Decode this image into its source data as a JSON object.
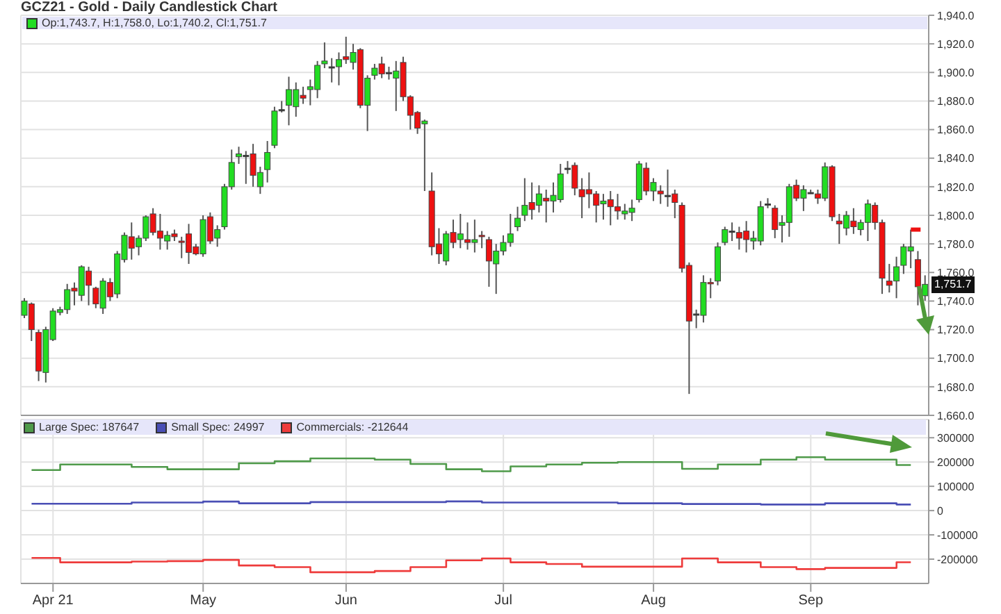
{
  "chart_data": [
    {
      "type": "candlestick",
      "title": "GCZ21 - Gold - Daily Candlestick Chart",
      "categories": [
        null,
        null,
        null,
        null,
        null,
        null,
        null,
        null,
        null,
        null,
        null,
        null,
        null,
        null,
        null,
        null,
        null,
        null,
        null,
        null,
        null,
        null,
        null,
        null,
        null,
        null,
        null,
        null,
        null,
        null,
        null,
        null,
        null,
        null,
        null,
        null,
        null,
        null,
        null,
        null,
        null,
        null,
        null,
        null,
        null,
        null,
        null,
        null,
        null,
        null,
        null,
        null,
        null,
        null,
        null,
        null,
        null,
        null,
        null,
        null,
        null,
        null,
        null,
        null,
        null,
        null,
        null,
        null,
        null,
        null,
        null,
        null,
        null,
        null,
        null,
        null,
        null,
        null,
        null,
        null,
        null,
        null,
        null,
        null,
        null,
        null,
        null,
        null,
        null,
        null,
        null,
        null,
        null,
        null,
        null,
        null,
        null,
        null,
        null,
        null,
        null,
        null,
        null,
        null,
        null,
        null,
        null,
        null,
        null,
        null,
        null,
        null,
        null,
        null,
        null,
        null,
        null,
        null,
        null,
        null,
        null,
        null,
        null,
        null,
        null,
        null,
        null
      ],
      "ohlc": [
        [
          1730,
          1742,
          1728,
          1740
        ],
        [
          1738,
          1739,
          1712,
          1720
        ],
        [
          1718,
          1720,
          1684,
          1691
        ],
        [
          1690,
          1722,
          1683,
          1720
        ],
        [
          1713,
          1735,
          1712,
          1733
        ],
        [
          1732,
          1736,
          1730,
          1734
        ],
        [
          1734,
          1752,
          1731,
          1748
        ],
        [
          1749,
          1753,
          1737,
          1747
        ],
        [
          1744,
          1765,
          1740,
          1764
        ],
        [
          1761,
          1764,
          1737,
          1751
        ],
        [
          1749,
          1750,
          1735,
          1738
        ],
        [
          1735,
          1756,
          1731,
          1754
        ],
        [
          1753,
          1756,
          1740,
          1743
        ],
        [
          1745,
          1775,
          1742,
          1773
        ],
        [
          1769,
          1788,
          1767,
          1786
        ],
        [
          1785,
          1795,
          1769,
          1777
        ],
        [
          1778,
          1786,
          1772,
          1784
        ],
        [
          1784,
          1800,
          1782,
          1799
        ],
        [
          1801,
          1805,
          1786,
          1788
        ],
        [
          1789,
          1801,
          1776,
          1784
        ],
        [
          1782,
          1789,
          1776,
          1786
        ],
        [
          1787,
          1790,
          1782,
          1785
        ],
        [
          1782,
          1785,
          1770,
          1781
        ],
        [
          1787,
          1794,
          1766,
          1774
        ],
        [
          1778,
          1780,
          1772,
          1773
        ],
        [
          1773,
          1800,
          1771,
          1797
        ],
        [
          1799,
          1802,
          1780,
          1782
        ],
        [
          1784,
          1793,
          1778,
          1790
        ],
        [
          1792,
          1822,
          1790,
          1820
        ],
        [
          1820,
          1846,
          1818,
          1837
        ],
        [
          1841,
          1848,
          1836,
          1843
        ],
        [
          1842,
          1845,
          1822,
          1842
        ],
        [
          1843,
          1850,
          1820,
          1828
        ],
        [
          1820,
          1834,
          1815,
          1830
        ],
        [
          1832,
          1852,
          1823,
          1844
        ],
        [
          1849,
          1876,
          1847,
          1873
        ],
        [
          1874,
          1880,
          1872,
          1874
        ],
        [
          1877,
          1897,
          1863,
          1888
        ],
        [
          1876,
          1893,
          1869,
          1888
        ],
        [
          1884,
          1890,
          1878,
          1882
        ],
        [
          1888,
          1895,
          1877,
          1890
        ],
        [
          1888,
          1908,
          1882,
          1905
        ],
        [
          1906,
          1921,
          1903,
          1908
        ],
        [
          1904,
          1910,
          1893,
          1904
        ],
        [
          1904,
          1914,
          1891,
          1909
        ],
        [
          1911,
          1925,
          1906,
          1909
        ],
        [
          1907,
          1920,
          1902,
          1914
        ],
        [
          1916,
          1917,
          1875,
          1877
        ],
        [
          1877,
          1898,
          1859,
          1896
        ],
        [
          1898,
          1906,
          1895,
          1903
        ],
        [
          1906,
          1911,
          1896,
          1899
        ],
        [
          1900,
          1904,
          1895,
          1900
        ],
        [
          1896,
          1908,
          1873,
          1901
        ],
        [
          1907,
          1911,
          1880,
          1883
        ],
        [
          1883,
          1884,
          1860,
          1870
        ],
        [
          1872,
          1873,
          1857,
          1861
        ],
        [
          1864,
          1867,
          1817,
          1866
        ],
        [
          1817,
          1830,
          1772,
          1778
        ],
        [
          1780,
          1791,
          1766,
          1773
        ],
        [
          1768,
          1789,
          1765,
          1787
        ],
        [
          1788,
          1797,
          1777,
          1781
        ],
        [
          1783,
          1801,
          1777,
          1787
        ],
        [
          1783,
          1795,
          1776,
          1781
        ],
        [
          1781,
          1797,
          1774,
          1783
        ],
        [
          1786,
          1789,
          1777,
          1785
        ],
        [
          1783,
          1785,
          1750,
          1768
        ],
        [
          1766,
          1780,
          1745,
          1775
        ],
        [
          1775,
          1786,
          1772,
          1781
        ],
        [
          1781,
          1801,
          1778,
          1787
        ],
        [
          1792,
          1806,
          1789,
          1798
        ],
        [
          1800,
          1826,
          1796,
          1807
        ],
        [
          1809,
          1823,
          1797,
          1804
        ],
        [
          1807,
          1821,
          1802,
          1815
        ],
        [
          1812,
          1818,
          1795,
          1810
        ],
        [
          1810,
          1823,
          1802,
          1814
        ],
        [
          1811,
          1836,
          1809,
          1829
        ],
        [
          1833,
          1838,
          1829,
          1833
        ],
        [
          1835,
          1837,
          1814,
          1819
        ],
        [
          1818,
          1826,
          1798,
          1813
        ],
        [
          1818,
          1830,
          1805,
          1815
        ],
        [
          1815,
          1817,
          1795,
          1807
        ],
        [
          1808,
          1815,
          1797,
          1810
        ],
        [
          1811,
          1817,
          1793,
          1806
        ],
        [
          1806,
          1815,
          1797,
          1803
        ],
        [
          1801,
          1808,
          1797,
          1803
        ],
        [
          1802,
          1811,
          1796,
          1805
        ],
        [
          1811,
          1838,
          1809,
          1836
        ],
        [
          1833,
          1837,
          1814,
          1817
        ],
        [
          1817,
          1826,
          1810,
          1823
        ],
        [
          1817,
          1821,
          1808,
          1815
        ],
        [
          1814,
          1832,
          1806,
          1814
        ],
        [
          1815,
          1818,
          1798,
          1809
        ],
        [
          1807,
          1809,
          1760,
          1763
        ],
        [
          1765,
          1767,
          1675,
          1726
        ],
        [
          1731,
          1734,
          1721,
          1731
        ],
        [
          1730,
          1758,
          1725,
          1753
        ],
        [
          1753,
          1756,
          1742,
          1752
        ],
        [
          1754,
          1781,
          1751,
          1778
        ],
        [
          1781,
          1792,
          1779,
          1790
        ],
        [
          1789,
          1795,
          1782,
          1789
        ],
        [
          1788,
          1792,
          1776,
          1784
        ],
        [
          1789,
          1796,
          1774,
          1783
        ],
        [
          1782,
          1789,
          1776,
          1784
        ],
        [
          1782,
          1810,
          1779,
          1806
        ],
        [
          1808,
          1812,
          1805,
          1808
        ],
        [
          1805,
          1807,
          1784,
          1790
        ],
        [
          1793,
          1800,
          1781,
          1795
        ],
        [
          1795,
          1822,
          1785,
          1820
        ],
        [
          1821,
          1825,
          1810,
          1812
        ],
        [
          1812,
          1821,
          1803,
          1818
        ],
        [
          1816,
          1818,
          1815,
          1816
        ],
        [
          1815,
          1818,
          1808,
          1812
        ],
        [
          1812,
          1837,
          1810,
          1834
        ],
        [
          1834,
          1835,
          1796,
          1799
        ],
        [
          1796,
          1801,
          1780,
          1794
        ],
        [
          1791,
          1803,
          1786,
          1800
        ],
        [
          1796,
          1805,
          1787,
          1792
        ],
        [
          1790,
          1797,
          1786,
          1795
        ],
        [
          1795,
          1811,
          1782,
          1808
        ],
        [
          1807,
          1809,
          1790,
          1795
        ],
        [
          1795,
          1797,
          1745,
          1756
        ],
        [
          1754,
          1766,
          1746,
          1751
        ],
        [
          1754,
          1771,
          1742,
          1764
        ],
        [
          1765,
          1780,
          1759,
          1778
        ],
        [
          1775,
          1790,
          1763,
          1778
        ],
        [
          1769,
          1775,
          1737,
          1750
        ],
        [
          1743.7,
          1758.0,
          1740.2,
          1751.7
        ]
      ],
      "series": [
        {
          "type": "line",
          "color": "#ee1111",
          "line_style": "dashed",
          "values": [
            null,
            null,
            null,
            null,
            null,
            null,
            null,
            null,
            null,
            null,
            null,
            null,
            null,
            null,
            null,
            null,
            null,
            null,
            null,
            null,
            null,
            null,
            null,
            null,
            null,
            null,
            null,
            null,
            null,
            null,
            null,
            null,
            null,
            null,
            null,
            null,
            null,
            null,
            null,
            null,
            null,
            null,
            null,
            null,
            null,
            null,
            null,
            null,
            null,
            null,
            null,
            null,
            null,
            null,
            null,
            null,
            null,
            null,
            null,
            null,
            null,
            null,
            null,
            null,
            null,
            null,
            null,
            null,
            null,
            null,
            null,
            null,
            null,
            null,
            null,
            null,
            null,
            null,
            null,
            null,
            null,
            null,
            null,
            null,
            null,
            null,
            null,
            null,
            null,
            null,
            null,
            null,
            null,
            null,
            null,
            null,
            null,
            null,
            null,
            null,
            null,
            null,
            null,
            null,
            null,
            null,
            null,
            null,
            null,
            null,
            null,
            null,
            null,
            null,
            null,
            null,
            null,
            null,
            null,
            null,
            null,
            null,
            null,
            null,
            1790,
            1790,
            1790
          ]
        }
      ],
      "ylim": [
        1660,
        1940
      ],
      "yticks": [
        {
          "value": 1660,
          "label": "1,660.0"
        },
        {
          "value": 1680,
          "label": "1,680.0"
        },
        {
          "value": 1700,
          "label": "1,700.0"
        },
        {
          "value": 1720,
          "label": "1,720.0"
        },
        {
          "value": 1740,
          "label": "1,740.0"
        },
        {
          "value": 1760,
          "label": "1,760.0"
        },
        {
          "value": 1780,
          "label": "1,780.0"
        },
        {
          "value": 1800,
          "label": "1,800.0"
        },
        {
          "value": 1820,
          "label": "1,820.0"
        },
        {
          "value": 1840,
          "label": "1,840.0"
        },
        {
          "value": 1860,
          "label": "1,860.0"
        },
        {
          "value": 1880,
          "label": "1,880.0"
        },
        {
          "value": 1900,
          "label": "1,900.0"
        },
        {
          "value": 1920,
          "label": "1,920.0"
        },
        {
          "value": 1940,
          "label": "1,940.0"
        }
      ],
      "grid": true,
      "tick_labels": "y",
      "annotations": [
        "Op:1,743.7, H:1,758.0, Lo:1,740.2, Cl:1,751.7",
        {
          "text": "1,751.7",
          "y": 1751.7
        }
      ]
    },
    {
      "type": "step",
      "categories": [
        null,
        null,
        null,
        null,
        "Apr 21",
        null,
        null,
        null,
        null,
        null,
        null,
        null,
        null,
        null,
        null,
        null,
        null,
        null,
        null,
        null,
        null,
        null,
        null,
        null,
        null,
        "May",
        null,
        null,
        null,
        null,
        null,
        null,
        null,
        null,
        null,
        null,
        null,
        null,
        null,
        null,
        null,
        null,
        null,
        null,
        null,
        "Jun",
        null,
        null,
        null,
        null,
        null,
        null,
        null,
        null,
        null,
        null,
        null,
        null,
        null,
        null,
        null,
        null,
        null,
        null,
        null,
        null,
        null,
        "Jul",
        null,
        null,
        null,
        null,
        null,
        null,
        null,
        null,
        null,
        null,
        null,
        null,
        null,
        null,
        null,
        null,
        null,
        null,
        null,
        null,
        "Aug",
        null,
        null,
        null,
        null,
        null,
        null,
        null,
        null,
        null,
        null,
        null,
        null,
        null,
        null,
        null,
        null,
        null,
        null,
        null,
        null,
        null,
        "Sep",
        null,
        null,
        null,
        null,
        null,
        null,
        null,
        null,
        null,
        null,
        null,
        null,
        null,
        null,
        null,
        null
      ],
      "series": [
        {
          "name": "Large Spec: 187647",
          "color": "#4f9a4a",
          "values": [
            null,
            167000,
            167000,
            167000,
            167000,
            190000,
            190000,
            190000,
            190000,
            190000,
            190000,
            190000,
            190000,
            190000,
            190000,
            180000,
            180000,
            180000,
            180000,
            180000,
            170000,
            170000,
            170000,
            170000,
            170000,
            170000,
            170000,
            170000,
            170000,
            170000,
            195000,
            195000,
            195000,
            195000,
            195000,
            203000,
            203000,
            203000,
            203000,
            203000,
            215000,
            215000,
            215000,
            215000,
            215000,
            215000,
            215000,
            215000,
            215000,
            210000,
            210000,
            210000,
            210000,
            210000,
            192000,
            192000,
            192000,
            192000,
            192000,
            170000,
            170000,
            170000,
            170000,
            170000,
            162000,
            162000,
            162000,
            162000,
            182000,
            182000,
            182000,
            182000,
            182000,
            190000,
            190000,
            190000,
            190000,
            190000,
            197000,
            197000,
            197000,
            197000,
            197000,
            200000,
            200000,
            200000,
            200000,
            200000,
            200000,
            200000,
            200000,
            200000,
            172000,
            172000,
            172000,
            172000,
            172000,
            190000,
            190000,
            190000,
            190000,
            190000,
            190000,
            210000,
            210000,
            210000,
            210000,
            210000,
            220000,
            220000,
            220000,
            220000,
            210000,
            210000,
            210000,
            210000,
            210000,
            210000,
            210000,
            210000,
            210000,
            210000,
            187647,
            187647,
            187647,
            null,
            null
          ]
        },
        {
          "name": "Small Spec: 24997",
          "color": "#4a4fb5",
          "values": [
            null,
            28000,
            28000,
            28000,
            28000,
            28000,
            28000,
            28000,
            28000,
            28000,
            28000,
            28000,
            28000,
            28000,
            28000,
            33000,
            33000,
            33000,
            33000,
            33000,
            33000,
            33000,
            33000,
            33000,
            33000,
            37000,
            37000,
            37000,
            37000,
            37000,
            30000,
            30000,
            30000,
            30000,
            30000,
            30000,
            30000,
            30000,
            30000,
            30000,
            35000,
            35000,
            35000,
            35000,
            35000,
            35000,
            35000,
            35000,
            35000,
            35000,
            35000,
            35000,
            35000,
            35000,
            35000,
            35000,
            35000,
            35000,
            35000,
            38000,
            38000,
            38000,
            38000,
            38000,
            33000,
            33000,
            33000,
            33000,
            33000,
            33000,
            33000,
            33000,
            33000,
            33000,
            33000,
            33000,
            33000,
            33000,
            33000,
            33000,
            33000,
            33000,
            33000,
            30000,
            30000,
            30000,
            30000,
            30000,
            30000,
            30000,
            30000,
            30000,
            27000,
            27000,
            27000,
            27000,
            27000,
            27000,
            27000,
            27000,
            27000,
            27000,
            27000,
            25000,
            25000,
            25000,
            25000,
            25000,
            25000,
            25000,
            25000,
            25000,
            30000,
            30000,
            30000,
            30000,
            30000,
            30000,
            30000,
            30000,
            30000,
            30000,
            24997,
            24997,
            24997,
            null,
            null
          ]
        },
        {
          "name": "Commercials: -212644",
          "color": "#ee3b3b",
          "values": [
            null,
            -195000,
            -195000,
            -195000,
            -195000,
            -213000,
            -213000,
            -213000,
            -213000,
            -213000,
            -213000,
            -213000,
            -213000,
            -213000,
            -213000,
            -210000,
            -210000,
            -210000,
            -210000,
            -210000,
            -208000,
            -208000,
            -208000,
            -208000,
            -208000,
            -203000,
            -203000,
            -203000,
            -203000,
            -203000,
            -226000,
            -226000,
            -226000,
            -226000,
            -226000,
            -233000,
            -233000,
            -233000,
            -233000,
            -233000,
            -254000,
            -254000,
            -254000,
            -254000,
            -254000,
            -254000,
            -254000,
            -254000,
            -254000,
            -249000,
            -249000,
            -249000,
            -249000,
            -249000,
            -233000,
            -233000,
            -233000,
            -233000,
            -233000,
            -205000,
            -205000,
            -205000,
            -205000,
            -205000,
            -197000,
            -197000,
            -197000,
            -197000,
            -213000,
            -213000,
            -213000,
            -213000,
            -213000,
            -220000,
            -220000,
            -220000,
            -220000,
            -220000,
            -231000,
            -231000,
            -231000,
            -231000,
            -231000,
            -231000,
            -231000,
            -231000,
            -231000,
            -231000,
            -231000,
            -231000,
            -231000,
            -231000,
            -197000,
            -197000,
            -197000,
            -197000,
            -197000,
            -213000,
            -213000,
            -213000,
            -213000,
            -213000,
            -213000,
            -233000,
            -233000,
            -233000,
            -233000,
            -233000,
            -241000,
            -241000,
            -241000,
            -241000,
            -236000,
            -236000,
            -236000,
            -236000,
            -236000,
            -236000,
            -236000,
            -236000,
            -236000,
            -236000,
            -212644,
            -212644,
            -212644,
            null,
            null
          ]
        }
      ],
      "ylim": [
        -300000,
        375000
      ],
      "yticks": [
        -200000,
        -100000,
        0,
        100000,
        200000,
        300000
      ],
      "grid": true,
      "legend": "top left"
    }
  ]
}
